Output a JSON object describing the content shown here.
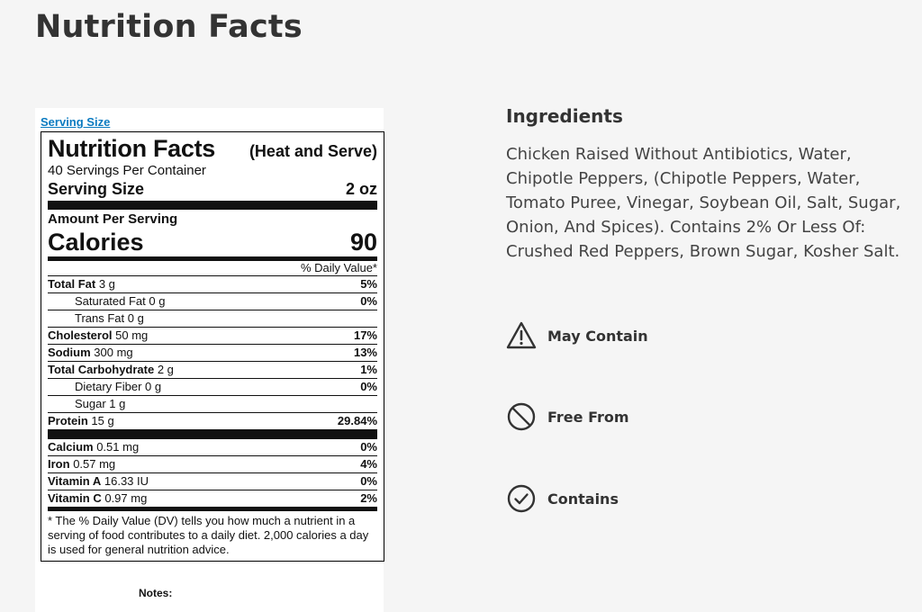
{
  "page": {
    "title": "Nutrition Facts"
  },
  "label": {
    "serving_link": "Serving Size",
    "title": "Nutrition Facts",
    "variant": "(Heat and Serve)",
    "servings_per_container": "40 Servings Per Container",
    "serving_size_label": "Serving Size",
    "serving_size_value": "2 oz",
    "amount_per_serving": "Amount Per Serving",
    "calories_label": "Calories",
    "calories_value": "90",
    "dv_header": "% Daily Value*",
    "rows": [
      {
        "name": "Total Fat",
        "amount": "3 g",
        "pct": "5%"
      },
      {
        "name": "Saturated Fat 0 g",
        "amount": "",
        "pct": "0%"
      },
      {
        "name": "Trans Fat 0 g",
        "amount": "",
        "pct": ""
      },
      {
        "name": "Cholesterol",
        "amount": "50 mg",
        "pct": "17%"
      },
      {
        "name": "Sodium",
        "amount": "300 mg",
        "pct": "13%"
      },
      {
        "name": "Total Carbohydrate",
        "amount": "2 g",
        "pct": "1%"
      },
      {
        "name": "Dietary Fiber 0 g",
        "amount": "",
        "pct": "0%"
      },
      {
        "name": "Sugar 1 g",
        "amount": "",
        "pct": ""
      },
      {
        "name": "Protein",
        "amount": "15 g",
        "pct": "29.84%"
      },
      {
        "name": "Calcium",
        "amount": "0.51 mg",
        "pct": "0%"
      },
      {
        "name": "Iron",
        "amount": "0.57 mg",
        "pct": "4%"
      },
      {
        "name": "Vitamin A",
        "amount": "16.33 IU",
        "pct": "0%"
      },
      {
        "name": "Vitamin C",
        "amount": "0.97 mg",
        "pct": "2%"
      }
    ],
    "footnote": "* The % Daily Value (DV) tells you how much a nutrient in a serving of food contributes to a daily diet. 2,000 calories a day is used for general nutrition advice.",
    "notes_label": "Notes:"
  },
  "ingredients": {
    "title": "Ingredients",
    "text": "Chicken Raised Without Antibiotics, Water, Chipotle Peppers, (Chipotle Peppers, Water, Tomato Puree, Vinegar, Soybean Oil, Salt, Sugar, Onion, And Spices). Contains 2% Or Less Of: Crushed Red Peppers, Brown Sugar, Kosher Salt."
  },
  "allergens": [
    {
      "label": "May Contain",
      "icon": "warning-triangle-icon"
    },
    {
      "label": "Free From",
      "icon": "prohibited-icon"
    },
    {
      "label": "Contains",
      "icon": "check-circle-icon"
    }
  ]
}
